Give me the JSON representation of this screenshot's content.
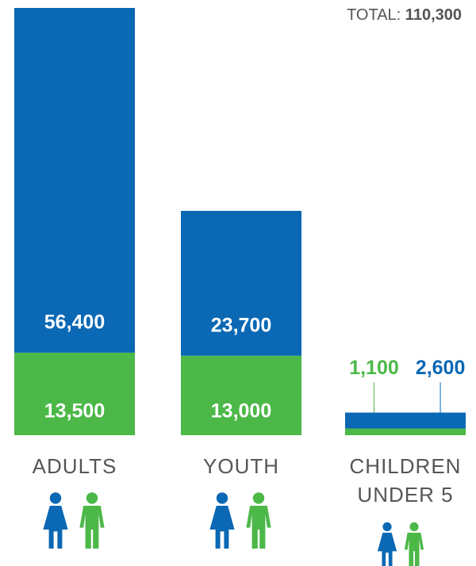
{
  "chart_data": {
    "type": "stacked_bar",
    "total_label": "TOTAL:",
    "total": "110,300",
    "categories": [
      "ADULTS",
      "YOUTH",
      "CHILDREN UNDER 5"
    ],
    "series": [
      {
        "color": "#4cb848",
        "values": [
          13500,
          13000,
          1100
        ],
        "value_labels": [
          "13,500",
          "13,000",
          "1,100"
        ]
      },
      {
        "color": "#0a68b4",
        "values": [
          56400,
          23700,
          2600
        ],
        "value_labels": [
          "56,400",
          "23,700",
          "2,600"
        ]
      }
    ]
  }
}
